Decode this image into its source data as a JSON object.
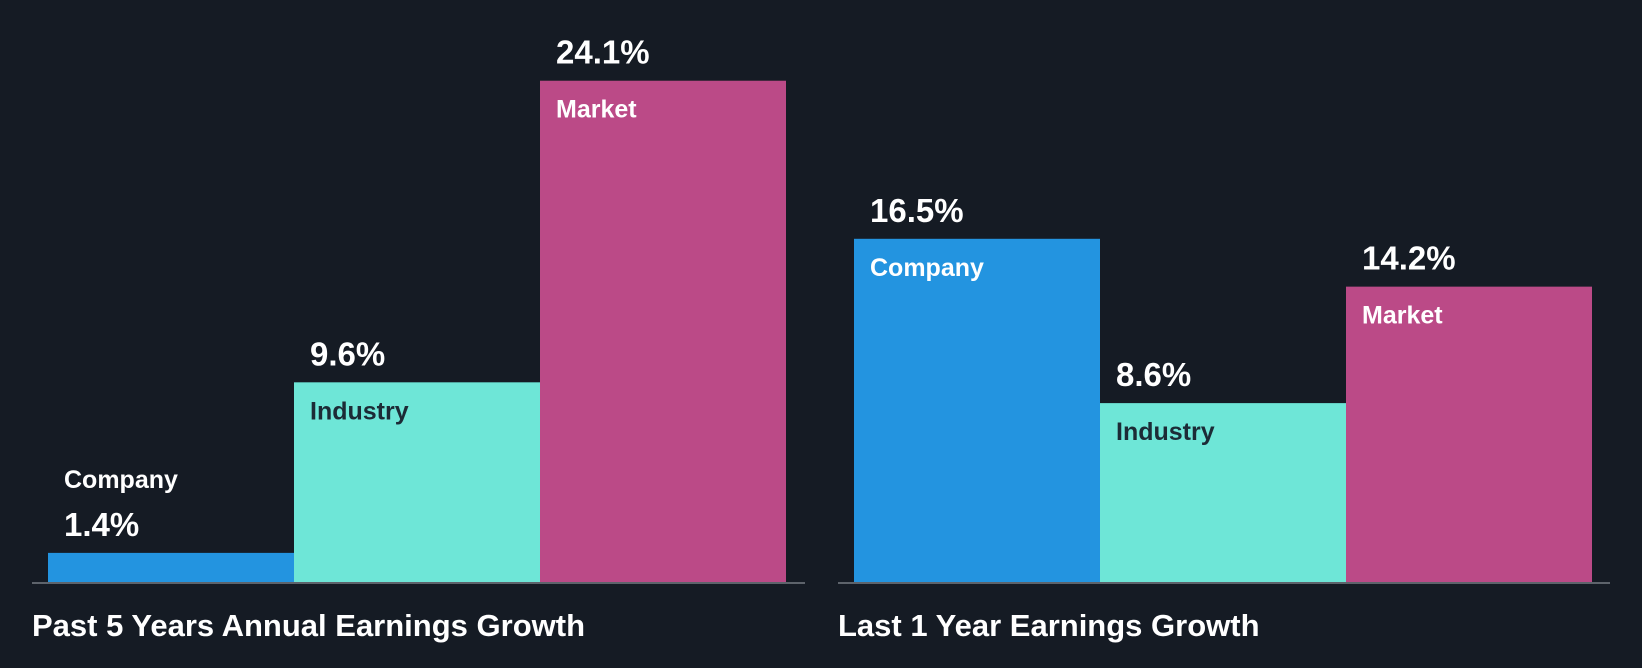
{
  "colors": {
    "background": "#151b24",
    "company": "#2394e0",
    "industry": "#6ee6d7",
    "market": "#bb4a87",
    "baseline": "#5d636b",
    "light_text": "#ffffff",
    "dark_text": "#1c2b36"
  },
  "chart_data": [
    {
      "type": "bar",
      "title": "Past 5 Years Annual Earnings Growth",
      "categories": [
        "Company",
        "Industry",
        "Market"
      ],
      "values": [
        1.4,
        9.6,
        24.1
      ],
      "value_labels": [
        "1.4%",
        "9.6%",
        "24.1%"
      ],
      "unit": "%",
      "grid": false
    },
    {
      "type": "bar",
      "title": "Last 1 Year Earnings Growth",
      "categories": [
        "Company",
        "Industry",
        "Market"
      ],
      "values": [
        16.5,
        8.6,
        14.2
      ],
      "value_labels": [
        "16.5%",
        "8.6%",
        "14.2%"
      ],
      "unit": "%",
      "grid": false
    }
  ]
}
